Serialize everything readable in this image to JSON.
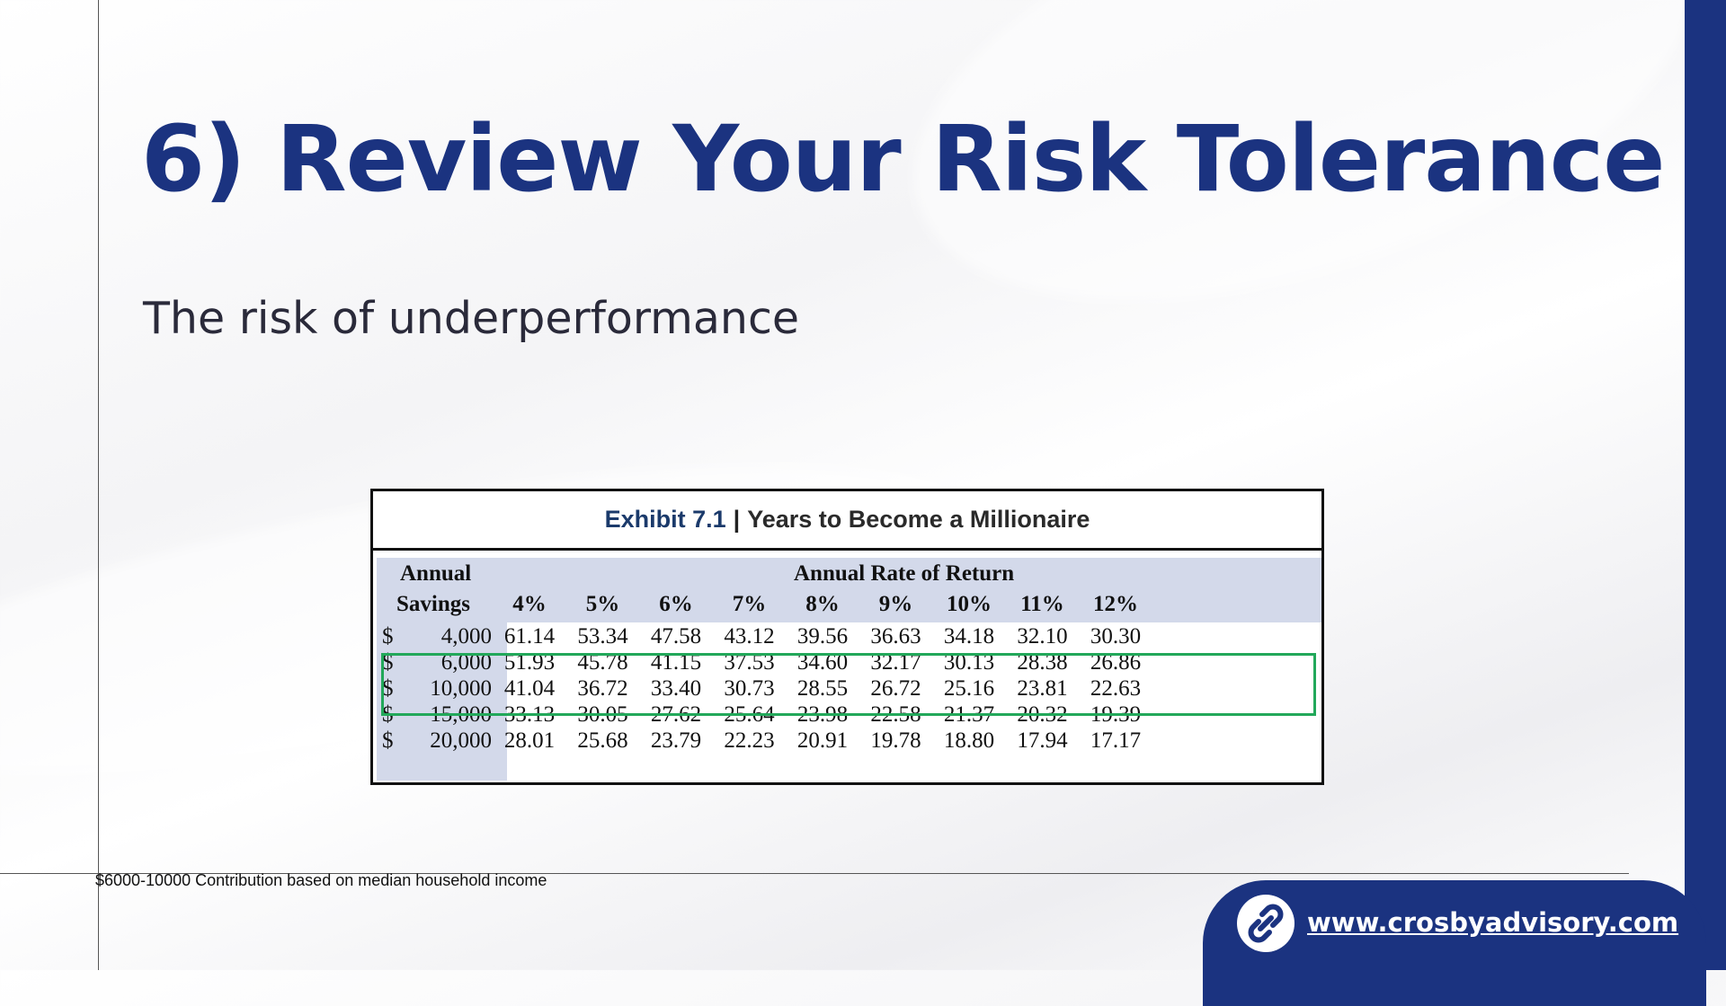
{
  "slide": {
    "title": "6) Review Your Risk Tolerance",
    "subtitle": "The risk of underperformance",
    "footnote": "$6000-10000 Contribution based on median household income",
    "website": "www.crosbyadvisory.com",
    "accent_color": "#1b3380",
    "highlight_color": "#22a85a"
  },
  "exhibit": {
    "number": "Exhibit 7.1",
    "separator": "|",
    "name": "Years to Become a Millionaire",
    "col_group_label_1": "Annual",
    "col_group_label_2": "Savings",
    "rate_header": "Annual Rate of Return",
    "rates": [
      "4%",
      "5%",
      "6%",
      "7%",
      "8%",
      "9%",
      "10%",
      "11%",
      "12%"
    ],
    "rows": [
      {
        "currency": "$",
        "savings": "4,000",
        "values": [
          "61.14",
          "53.34",
          "47.58",
          "43.12",
          "39.56",
          "36.63",
          "34.18",
          "32.10",
          "30.30"
        ]
      },
      {
        "currency": "$",
        "savings": "6,000",
        "values": [
          "51.93",
          "45.78",
          "41.15",
          "37.53",
          "34.60",
          "32.17",
          "30.13",
          "28.38",
          "26.86"
        ]
      },
      {
        "currency": "$",
        "savings": "10,000",
        "values": [
          "41.04",
          "36.72",
          "33.40",
          "30.73",
          "28.55",
          "26.72",
          "25.16",
          "23.81",
          "22.63"
        ]
      },
      {
        "currency": "$",
        "savings": "15,000",
        "values": [
          "33.13",
          "30.05",
          "27.62",
          "25.64",
          "23.98",
          "22.58",
          "21.37",
          "20.32",
          "19.39"
        ]
      },
      {
        "currency": "$",
        "savings": "20,000",
        "values": [
          "28.01",
          "25.68",
          "23.79",
          "22.23",
          "20.91",
          "19.78",
          "18.80",
          "17.94",
          "17.17"
        ]
      }
    ],
    "highlighted_rows": [
      1,
      2
    ]
  },
  "icons": {
    "footer_icon": "link-icon"
  }
}
